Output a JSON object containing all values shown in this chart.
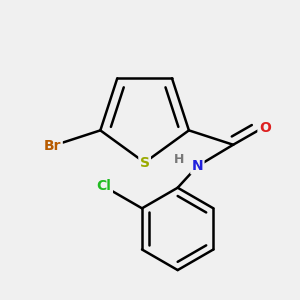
{
  "background_color": "#f0f0f0",
  "bond_color": "#000000",
  "bond_width": 1.8,
  "atom_colors": {
    "Br": "#b85c00",
    "S": "#9aaa00",
    "N": "#2020dd",
    "O": "#dd2020",
    "Cl": "#22bb22",
    "H": "#777777",
    "C": "#000000"
  },
  "font_size": 10,
  "fig_size": [
    3.0,
    3.0
  ],
  "dpi": 100
}
